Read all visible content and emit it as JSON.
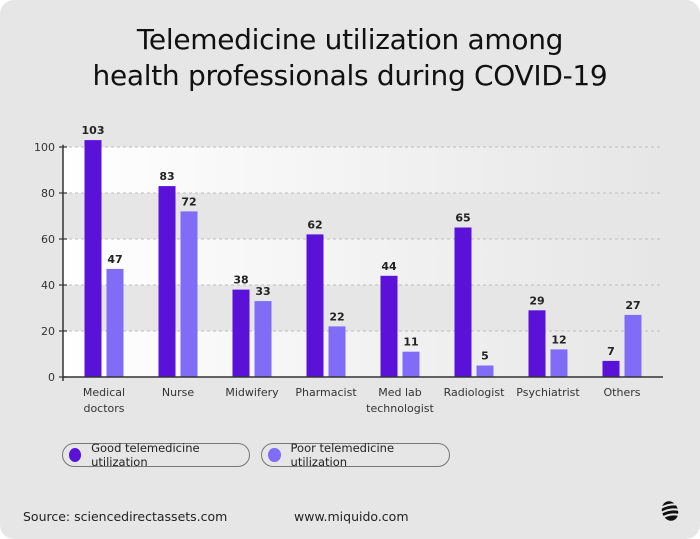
{
  "chart_data": {
    "type": "bar",
    "title": "Telemedicine utilization among health professionals during COVID-19",
    "title_lines": [
      "Telemedicine utilization among",
      "health professionals during COVID-19"
    ],
    "categories": [
      "Medical doctors",
      "Nurse",
      "Midwifery",
      "Pharmacist",
      "Med lab technologist",
      "Radiologist",
      "Psychiatrist",
      "Others"
    ],
    "category_lines": [
      [
        "Medical",
        "doctors"
      ],
      [
        "Nurse"
      ],
      [
        "Midwifery"
      ],
      [
        "Pharmacist"
      ],
      [
        "Med lab",
        "technologist"
      ],
      [
        "Radiologist"
      ],
      [
        "Psychiatrist"
      ],
      [
        "Others"
      ]
    ],
    "series": [
      {
        "name": "Good telemedicine utilization",
        "color": "#5a12d9",
        "values": [
          103,
          83,
          38,
          62,
          44,
          65,
          29,
          7
        ]
      },
      {
        "name": "Poor telemedicine utilization",
        "color": "#806cf6",
        "values": [
          47,
          72,
          33,
          22,
          11,
          5,
          12,
          27
        ]
      }
    ],
    "yticks": [
      0,
      20,
      40,
      60,
      80,
      100
    ],
    "ylim": [
      0,
      100
    ],
    "grid": true,
    "legend_position": "bottom-left",
    "xlabel": "",
    "ylabel": ""
  },
  "footer": {
    "source": "Source: sciencedirectassets.com",
    "website": "www.miquido.com"
  }
}
